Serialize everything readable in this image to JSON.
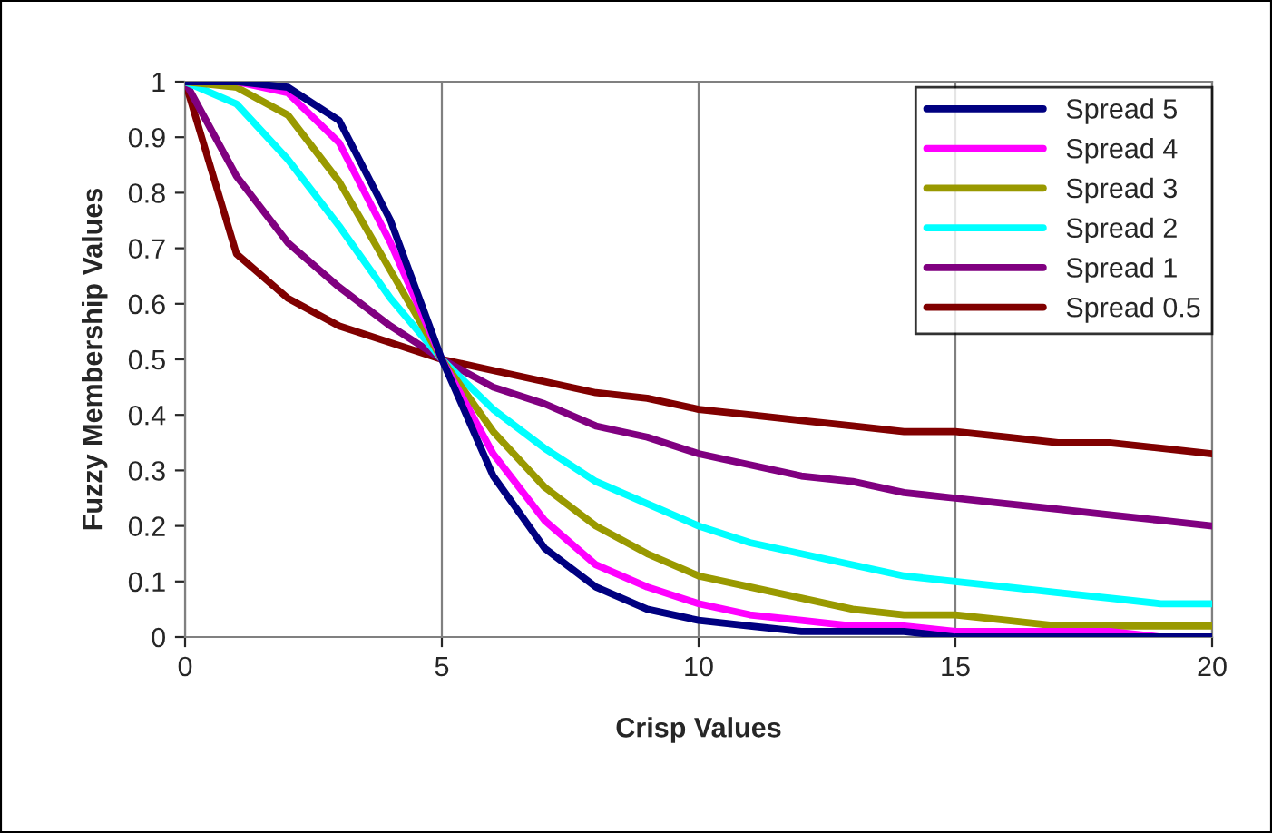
{
  "chart_data": {
    "type": "line",
    "xlabel": "Crisp Values",
    "ylabel": "Fuzzy Membership Values",
    "x": [
      0,
      1,
      2,
      3,
      4,
      5,
      6,
      7,
      8,
      9,
      10,
      11,
      12,
      13,
      14,
      15,
      16,
      17,
      18,
      19,
      20
    ],
    "xlim": [
      0,
      20
    ],
    "xticks": [
      0,
      5,
      10,
      15,
      20
    ],
    "ylim": [
      0,
      1
    ],
    "yticks": [
      0,
      0.1,
      0.2,
      0.3,
      0.4,
      0.5,
      0.6,
      0.7,
      0.8,
      0.9,
      1
    ],
    "grid": "x",
    "legend": "top right",
    "marker": "none",
    "line_style": "solid",
    "series": [
      {
        "name": "Spread 5",
        "color": "#000080",
        "values": [
          1,
          1,
          0.99,
          0.93,
          0.75,
          0.5,
          0.29,
          0.16,
          0.09,
          0.05,
          0.03,
          0.02,
          0.01,
          0.01,
          0.01,
          0,
          0,
          0,
          0,
          0,
          0
        ]
      },
      {
        "name": "Spread 4",
        "color": "#ff00ff",
        "values": [
          1,
          1,
          0.98,
          0.89,
          0.71,
          0.5,
          0.33,
          0.21,
          0.13,
          0.09,
          0.06,
          0.04,
          0.03,
          0.02,
          0.02,
          0.01,
          0.01,
          0.01,
          0.01,
          0,
          0
        ]
      },
      {
        "name": "Spread 3",
        "color": "#999900",
        "values": [
          1,
          0.99,
          0.94,
          0.82,
          0.66,
          0.5,
          0.37,
          0.27,
          0.2,
          0.15,
          0.11,
          0.09,
          0.07,
          0.05,
          0.04,
          0.04,
          0.03,
          0.02,
          0.02,
          0.02,
          0.02
        ]
      },
      {
        "name": "Spread 2",
        "color": "#00ffff",
        "values": [
          1,
          0.96,
          0.86,
          0.74,
          0.61,
          0.5,
          0.41,
          0.34,
          0.28,
          0.24,
          0.2,
          0.17,
          0.15,
          0.13,
          0.11,
          0.1,
          0.09,
          0.08,
          0.07,
          0.06,
          0.06
        ]
      },
      {
        "name": "Spread 1",
        "color": "#800080",
        "values": [
          1,
          0.83,
          0.71,
          0.63,
          0.56,
          0.5,
          0.45,
          0.42,
          0.38,
          0.36,
          0.33,
          0.31,
          0.29,
          0.28,
          0.26,
          0.25,
          0.24,
          0.23,
          0.22,
          0.21,
          0.2
        ]
      },
      {
        "name": "Spread 0.5",
        "color": "#800000",
        "values": [
          1,
          0.69,
          0.61,
          0.56,
          0.53,
          0.5,
          0.48,
          0.46,
          0.44,
          0.43,
          0.41,
          0.4,
          0.39,
          0.38,
          0.37,
          0.37,
          0.36,
          0.35,
          0.35,
          0.34,
          0.33
        ]
      }
    ]
  }
}
